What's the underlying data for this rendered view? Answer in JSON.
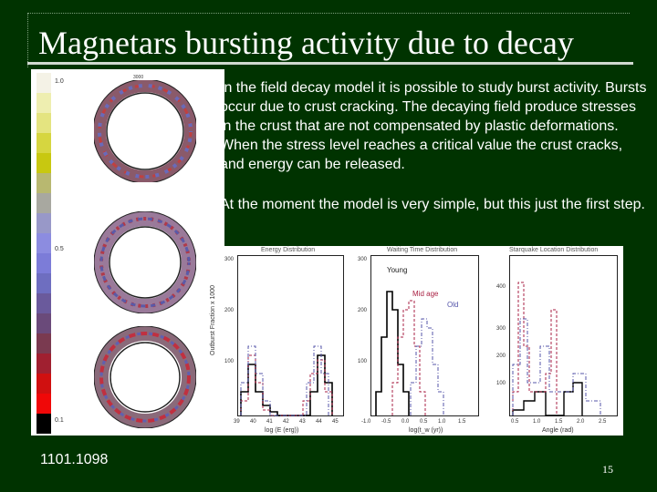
{
  "slide": {
    "title": "Magnetars bursting activity due to decay",
    "paragraph1": "In the field decay model it is possible to study burst activity. Bursts occur due to crust cracking. The decaying field produce stresses in the crust that are not compensated by plastic deformations. When the stress level reaches a critical value the crust cracks, and energy can be released.",
    "paragraph2": "At the moment the model is very simple, but this just the first step.",
    "reference": "1101.1098",
    "page_number": "15"
  },
  "left_figure": {
    "colorbar_labels": [
      "1.0",
      "0.5",
      "0.1"
    ],
    "top_label": "3000"
  },
  "right_figure": {
    "panels": [
      {
        "title": "Energy Distribution",
        "ylabel": "Outburst Fraction x 1000",
        "xlabel": "log (E (erg))",
        "yticks": [
          "300",
          "200",
          "100"
        ],
        "xticks": [
          "39",
          "40",
          "41",
          "42",
          "43",
          "44",
          "45"
        ]
      },
      {
        "title": "Waiting Time Distribution",
        "xlabel": "log(t_w (yr))",
        "yticks": [
          "300",
          "200",
          "100"
        ],
        "xticks": [
          "-1.0",
          "-0.5",
          "0.0",
          "0.5",
          "1.0",
          "1.5"
        ],
        "annotations": [
          "Young",
          "Mid age",
          "Old"
        ]
      },
      {
        "title": "Starquake Location Distribution",
        "xlabel": "Angle (rad)",
        "yticks": [
          "400",
          "300",
          "200",
          "100"
        ],
        "xticks": [
          "0.5",
          "1.0",
          "1.5",
          "2.0",
          "2.5"
        ]
      }
    ]
  },
  "colors": {
    "background": "#003300",
    "text": "#ffffff",
    "young": "#000000",
    "mid_age": "#aa2244",
    "old": "#5555aa"
  }
}
